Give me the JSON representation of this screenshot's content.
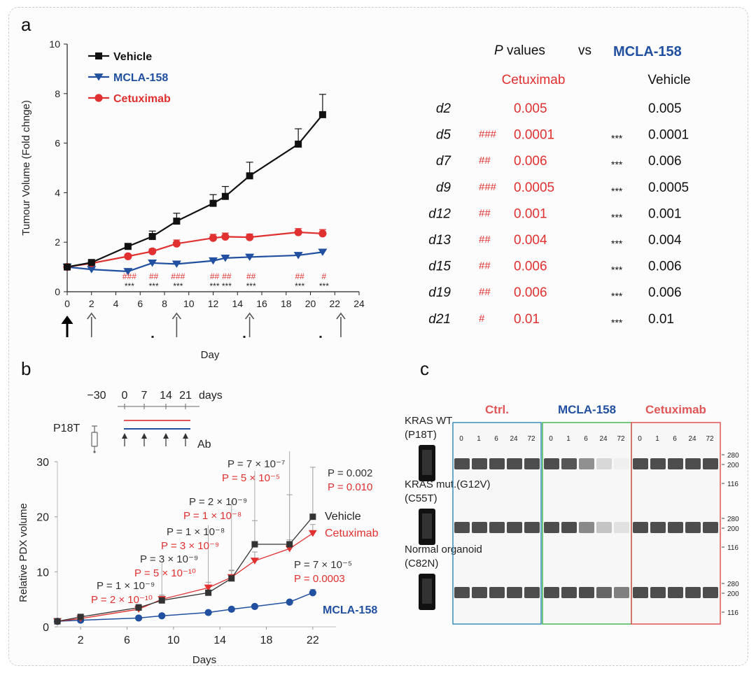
{
  "colors": {
    "vehicle": "#111111",
    "mcla": "#2150a0",
    "cetux": "#e03030",
    "axis": "#222222",
    "band": "#3a3a3a"
  },
  "panel_labels": {
    "a": "a",
    "b": "b",
    "c": "c"
  },
  "pvalue_table": {
    "title_p": "P",
    "title_values": "values",
    "title_vs": "vs",
    "title_ref": "MCLA-158",
    "col_cetux": "Cetuximab",
    "col_vehicle": "Vehicle",
    "rows": [
      {
        "day": "d2",
        "c_sig": "",
        "c_p": "0.005",
        "v_sig": "",
        "v_p": "0.005"
      },
      {
        "day": "d5",
        "c_sig": "###",
        "c_p": "0.0001",
        "v_sig": "***",
        "v_p": "0.0001"
      },
      {
        "day": "d7",
        "c_sig": "##",
        "c_p": "0.006",
        "v_sig": "***",
        "v_p": "0.006"
      },
      {
        "day": "d9",
        "c_sig": "###",
        "c_p": "0.0005",
        "v_sig": "***",
        "v_p": "0.0005"
      },
      {
        "day": "d12",
        "c_sig": "##",
        "c_p": "0.001",
        "v_sig": "***",
        "v_p": "0.001"
      },
      {
        "day": "d13",
        "c_sig": "##",
        "c_p": "0.004",
        "v_sig": "***",
        "v_p": "0.004"
      },
      {
        "day": "d15",
        "c_sig": "##",
        "c_p": "0.006",
        "v_sig": "***",
        "v_p": "0.006"
      },
      {
        "day": "d19",
        "c_sig": "##",
        "c_p": "0.006",
        "v_sig": "***",
        "v_p": "0.006"
      },
      {
        "day": "d21",
        "c_sig": "#",
        "c_p": "0.01",
        "v_sig": "***",
        "v_p": "0.01"
      }
    ]
  },
  "schedule": {
    "model": "P18T",
    "tick_labels": [
      "−30",
      "0",
      "7",
      "14",
      "21"
    ],
    "unit": "days",
    "ab_label": "Ab"
  },
  "gel": {
    "groups": [
      "Ctrl.",
      "MCLA-158",
      "Cetuximab"
    ],
    "times": [
      "0",
      "1",
      "6",
      "24",
      "72"
    ],
    "rows": [
      {
        "label1": "KRAS WT",
        "label2": "(P18T)",
        "intensity": [
          [
            1,
            1,
            1,
            1,
            1
          ],
          [
            1,
            0.95,
            0.6,
            0.18,
            0.05
          ],
          [
            1,
            1,
            1,
            1,
            1
          ]
        ]
      },
      {
        "label1": "KRAS mut.(G12V)",
        "label2": "(C55T)",
        "intensity": [
          [
            1,
            1,
            1,
            1,
            1
          ],
          [
            1,
            1,
            0.65,
            0.3,
            0.12
          ],
          [
            1,
            1,
            1,
            1,
            1
          ]
        ]
      },
      {
        "label1": "Normal organoid",
        "label2": "(C82N)",
        "intensity": [
          [
            1,
            1,
            1,
            1,
            1
          ],
          [
            1,
            1,
            1,
            0.85,
            0.7
          ],
          [
            1,
            1,
            1,
            1,
            1
          ]
        ]
      }
    ],
    "markers": [
      "280",
      "200",
      "116"
    ]
  },
  "chart_data": [
    {
      "id": "panel-a",
      "type": "line",
      "xlabel": "Day",
      "ylabel": "Tumour Volume (Fold chnge)",
      "xlim": [
        0,
        24
      ],
      "ylim": [
        0,
        10
      ],
      "xticks": [
        0,
        2,
        4,
        6,
        8,
        10,
        12,
        14,
        16,
        18,
        20,
        22,
        24
      ],
      "yticks": [
        0,
        2,
        4,
        6,
        8,
        10
      ],
      "series": [
        {
          "name": "Vehicle",
          "marker": "square",
          "x": [
            0,
            2,
            5,
            7,
            9,
            12,
            13,
            15,
            19,
            21
          ],
          "y": [
            1.0,
            1.18,
            1.83,
            2.23,
            2.85,
            3.57,
            3.85,
            4.68,
            5.96,
            7.15
          ],
          "err": [
            0,
            0.05,
            0.1,
            0.22,
            0.32,
            0.35,
            0.4,
            0.55,
            0.62,
            0.82
          ]
        },
        {
          "name": "MCLA-158",
          "marker": "triangle-down",
          "x": [
            0,
            2,
            5,
            7,
            9,
            12,
            13,
            15,
            19,
            21
          ],
          "y": [
            1.0,
            0.9,
            0.82,
            1.16,
            1.12,
            1.25,
            1.36,
            1.4,
            1.47,
            1.6
          ],
          "err": [
            0,
            0.05,
            0.06,
            0.08,
            0.06,
            0.05,
            0.06,
            0.06,
            0.06,
            0.1
          ]
        },
        {
          "name": "Cetuximab",
          "marker": "circle",
          "x": [
            0,
            2,
            5,
            7,
            9,
            12,
            13,
            15,
            19,
            21
          ],
          "y": [
            1.0,
            1.15,
            1.43,
            1.63,
            1.94,
            2.17,
            2.22,
            2.2,
            2.4,
            2.35
          ],
          "err": [
            0,
            0.05,
            0.08,
            0.1,
            0.15,
            0.15,
            0.15,
            0.13,
            0.15,
            0.16
          ]
        }
      ],
      "annotations": [
        {
          "x": 5,
          "hash": "###",
          "star": "***"
        },
        {
          "x": 7,
          "hash": "##",
          "star": "***"
        },
        {
          "x": 9,
          "hash": "###",
          "star": "***"
        },
        {
          "x": 12,
          "hash": "##",
          "star": "***"
        },
        {
          "x": 13,
          "hash": "##",
          "star": "***"
        },
        {
          "x": 15,
          "hash": "##",
          "star": "***"
        },
        {
          "x": 19,
          "hash": "##",
          "star": "***"
        },
        {
          "x": 21,
          "hash": "#",
          "star": "***"
        }
      ],
      "dosing_days": [
        0,
        2,
        9,
        15,
        22.5
      ]
    },
    {
      "id": "panel-b",
      "type": "line",
      "xlabel": "Days",
      "ylabel": "Relative PDX volume",
      "xlim": [
        0,
        24
      ],
      "ylim": [
        0,
        30
      ],
      "xticks": [
        2,
        6,
        10,
        14,
        18,
        22
      ],
      "yticks": [
        0,
        10,
        20,
        30
      ],
      "series": [
        {
          "name": "Vehicle",
          "marker": "square",
          "x": [
            0,
            2,
            7,
            9,
            13,
            15,
            17,
            20,
            22
          ],
          "y": [
            1,
            1.8,
            3.5,
            4.8,
            6.2,
            8.8,
            15,
            15,
            20
          ],
          "err": [
            0,
            0.3,
            0.6,
            0.8,
            1.2,
            1.5,
            4.3,
            9,
            9
          ]
        },
        {
          "name": "Cetuximab",
          "marker": "triangle-down",
          "x": [
            0,
            2,
            7,
            9,
            13,
            15,
            17,
            20,
            22
          ],
          "y": [
            1,
            1.5,
            3.2,
            5,
            7.1,
            9,
            12,
            14.2,
            17
          ],
          "err": [
            0,
            0.3,
            0.6,
            0.8,
            1,
            1.2,
            1.6,
            1.6,
            1.6
          ]
        },
        {
          "name": "MCLA-158",
          "marker": "circle",
          "x": [
            0,
            2,
            7,
            9,
            13,
            15,
            17,
            20,
            22
          ],
          "y": [
            1,
            1.2,
            1.6,
            2,
            2.6,
            3.2,
            3.7,
            4.5,
            6.2
          ],
          "err": [
            0,
            0.1,
            0.2,
            0.2,
            0.3,
            0.3,
            0.3,
            0.4,
            0.6
          ]
        }
      ],
      "annotations": [
        {
          "x": 9,
          "black": "P = 1 × 10⁻⁹",
          "red": "P = 2 × 10⁻¹⁰"
        },
        {
          "x": 13,
          "black": "P = 3 × 10⁻⁹",
          "red": "P = 5 × 10⁻¹⁰"
        },
        {
          "x": 15,
          "black": "P = 1 × 10⁻⁸",
          "red": "P = 3 × 10⁻⁹"
        },
        {
          "x": 17,
          "black": "P = 2 × 10⁻⁹",
          "red": "P = 1 × 10⁻⁸"
        },
        {
          "x": 20,
          "black": "P = 7 × 10⁻⁷",
          "red": "P = 5 × 10⁻⁵"
        },
        {
          "x": 22,
          "black": "P = 0.002",
          "red": "P = 0.010"
        }
      ],
      "mcla_annotation": {
        "black": "P = 7 × 10⁻⁵",
        "red": "P = 0.0003"
      }
    }
  ]
}
